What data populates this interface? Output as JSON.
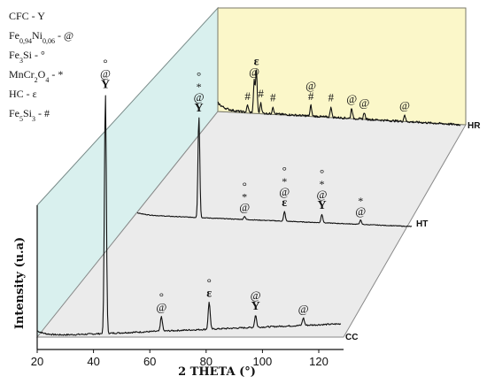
{
  "chart_data": {
    "type": "line",
    "title": "",
    "xlabel": "2 THETA (°)",
    "ylabel": "Intensity (u.a)",
    "xlim": [
      20,
      130
    ],
    "x_ticks": [
      "20",
      "40",
      "60",
      "80",
      "100",
      "120"
    ],
    "grid": false,
    "legend_position": "top-left",
    "legend": [
      {
        "text": "CFC - Y"
      },
      {
        "base": "Fe",
        "sub1": "0,94",
        "mid": "Ni",
        "sub2": "0,06",
        "tail": " - @"
      },
      {
        "base": "Fe",
        "sub1": "3",
        "tail": "Si - °"
      },
      {
        "base": "MnCr",
        "sub1": "2",
        "mid": "O",
        "sub2": "4",
        "tail": " - *"
      },
      {
        "text": "HC - ε"
      },
      {
        "base": "Fe",
        "sub1": "5",
        "mid": "Si",
        "sub2": "3",
        "tail": " - #"
      }
    ],
    "series": [
      {
        "name": "CC",
        "peaks": [
          {
            "x": 44.7,
            "h": 0.97,
            "labels": [
              "°",
              "@",
              "Y"
            ]
          },
          {
            "x": 65.0,
            "h": 0.06,
            "labels": [
              "°",
              "@"
            ]
          },
          {
            "x": 82.3,
            "h": 0.11,
            "labels": [
              "°",
              "ε"
            ]
          },
          {
            "x": 99.1,
            "h": 0.05,
            "labels": [
              "@",
              "Y"
            ]
          },
          {
            "x": 116.4,
            "h": 0.03,
            "labels": [
              "@"
            ]
          }
        ]
      },
      {
        "name": "HT",
        "peaks": [
          {
            "x": 44.7,
            "h": 0.95,
            "labels": [
              "°",
              "*",
              "@",
              "Y"
            ]
          },
          {
            "x": 63.0,
            "h": 0.03,
            "labels": [
              "°",
              "*",
              "@"
            ]
          },
          {
            "x": 79.0,
            "h": 0.09,
            "labels": [
              "°",
              "*",
              "@",
              "ε"
            ]
          },
          {
            "x": 94.0,
            "h": 0.08,
            "labels": [
              "°",
              "*",
              "@",
              "Y"
            ]
          },
          {
            "x": 109.5,
            "h": 0.04,
            "labels": [
              "*",
              "@"
            ]
          }
        ]
      },
      {
        "name": "HR",
        "peaks": [
          {
            "x": 33.5,
            "h": 0.02,
            "labels": [
              "#"
            ]
          },
          {
            "x": 36.5,
            "h": 0.09,
            "labels": [
              "@"
            ]
          },
          {
            "x": 37.5,
            "h": 0.12,
            "labels": [
              "ε"
            ]
          },
          {
            "x": 39.5,
            "h": 0.03,
            "labels": [
              "#"
            ]
          },
          {
            "x": 45.0,
            "h": 0.02,
            "labels": [
              "#"
            ]
          },
          {
            "x": 62.2,
            "h": 0.03,
            "labels": [
              "@",
              "#"
            ]
          },
          {
            "x": 71.3,
            "h": 0.03,
            "labels": [
              "#"
            ]
          },
          {
            "x": 80.7,
            "h": 0.03,
            "labels": [
              "@"
            ]
          },
          {
            "x": 86.4,
            "h": 0.02,
            "labels": [
              "@"
            ]
          },
          {
            "x": 104.7,
            "h": 0.02,
            "labels": [
              "@"
            ]
          }
        ]
      }
    ],
    "colors": {
      "back_panel": "#fbf7c9",
      "side_panel": "#d9f0ee",
      "floor_panel": "#ebebeb",
      "line": "#111111"
    }
  }
}
